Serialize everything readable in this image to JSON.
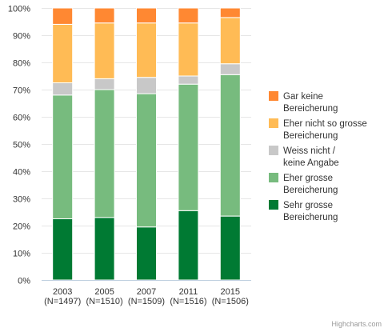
{
  "chart_data": {
    "type": "bar",
    "stacked": "percent",
    "categories": [
      [
        "2003",
        "(N=1497)"
      ],
      [
        "2005",
        "(N=1510)"
      ],
      [
        "2007",
        "(N=1509)"
      ],
      [
        "2011",
        "(N=1516)"
      ],
      [
        "2015",
        "(N=1506)"
      ]
    ],
    "y_ticks": [
      "0%",
      "10%",
      "20%",
      "30%",
      "40%",
      "50%",
      "60%",
      "70%",
      "80%",
      "90%",
      "100%"
    ],
    "ylim": [
      0,
      100
    ],
    "grid": true,
    "legend_position": "right",
    "series": [
      {
        "name": "Sehr grosse Bereicherung",
        "legend_lines": [
          "Sehr grosse",
          "Bereicherung"
        ],
        "color": "#007a33",
        "values": [
          22.5,
          23,
          19.5,
          25.5,
          23.5
        ]
      },
      {
        "name": "Eher grosse Bereicherung",
        "legend_lines": [
          "Eher grosse",
          "Bereicherung"
        ],
        "color": "#77bb7e",
        "values": [
          45.5,
          47,
          49,
          46.5,
          52
        ]
      },
      {
        "name": "Weiss nicht / keine Angabe",
        "legend_lines": [
          "Weiss nicht /",
          "keine Angabe"
        ],
        "color": "#c8c8c8",
        "values": [
          4.5,
          4,
          6,
          3,
          4
        ]
      },
      {
        "name": "Eher nicht so grosse Bereicherung",
        "legend_lines": [
          "Eher nicht so grosse",
          "Bereicherung"
        ],
        "color": "#ffbb55",
        "values": [
          21.5,
          20.5,
          20,
          19.5,
          17
        ]
      },
      {
        "name": "Gar keine Bereicherung",
        "legend_lines": [
          "Gar keine",
          "Bereicherung"
        ],
        "color": "#ff8832",
        "values": [
          6,
          5.5,
          5.5,
          5.5,
          3.5
        ]
      }
    ]
  },
  "credits": "Highcharts.com"
}
